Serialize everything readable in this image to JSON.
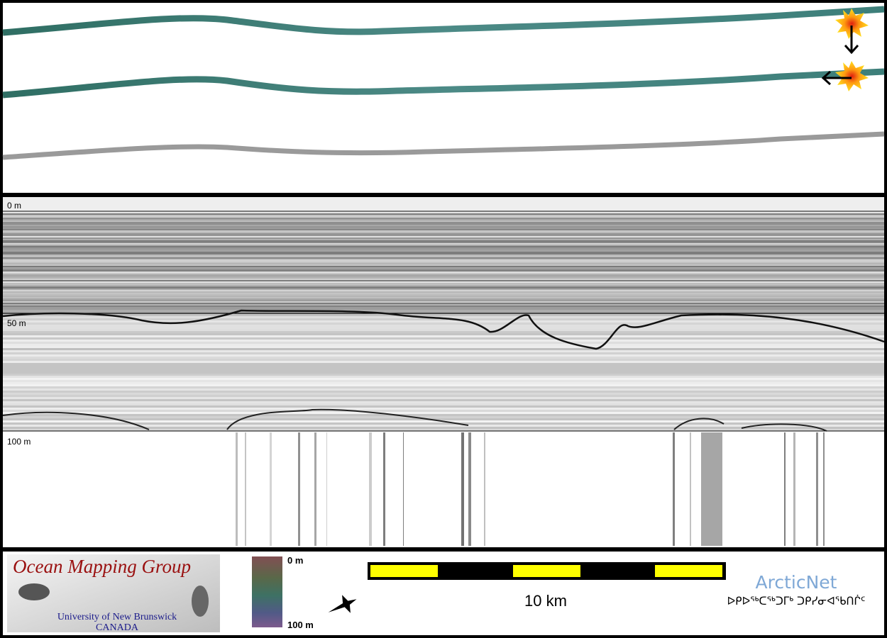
{
  "echogram": {
    "depth_labels": [
      "0 m",
      "50 m",
      "100 m"
    ]
  },
  "legend": {
    "logo_title": "Ocean Mapping Group",
    "logo_university": "University of New Brunswick",
    "logo_country": "CANADA",
    "colorbar_top": "0 m",
    "colorbar_bottom": "100 m",
    "scale_label": "10 km",
    "partner": "ArcticNet",
    "partner_syllabics": "ᐅᑭᐅᖅᑕᖅᑐᒥᒃ ᑐᑭᓯᓂᐊᖃᑎᒌᑦ"
  }
}
